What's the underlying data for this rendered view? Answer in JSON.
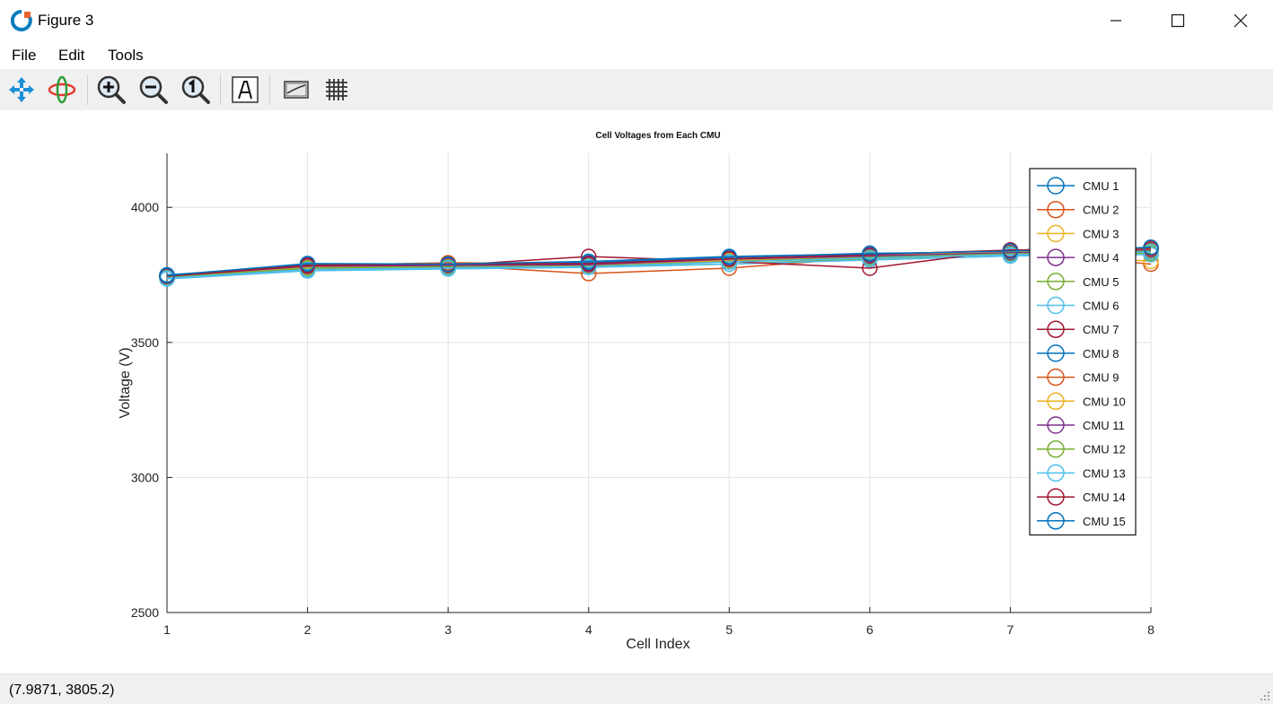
{
  "window": {
    "title": "Figure 3"
  },
  "menu": {
    "items": [
      "File",
      "Edit",
      "Tools"
    ]
  },
  "toolbar": {
    "tools": [
      "pan-icon",
      "rotate-icon",
      "zoom-in-icon",
      "zoom-out-icon",
      "zoom-reset-icon",
      "text-icon",
      "axes-icon",
      "grid-icon"
    ]
  },
  "status": {
    "coordinates": "(7.9871, 3805.2)"
  },
  "chart_data": {
    "type": "line",
    "title": "Cell Voltages from Each CMU",
    "xlabel": "Cell Index",
    "ylabel": "Voltage (V)",
    "xlim": [
      1,
      8
    ],
    "ylim": [
      2500,
      4200
    ],
    "xticks": [
      1,
      2,
      3,
      4,
      5,
      6,
      7,
      8
    ],
    "yticks": [
      2500,
      3000,
      3500,
      4000
    ],
    "grid": true,
    "legend_position": "top-right",
    "marker": "circle",
    "x": [
      1,
      2,
      3,
      4,
      5,
      6,
      7,
      8
    ],
    "series": [
      {
        "name": "CMU 1",
        "color": "#0072BD",
        "values": [
          3750,
          3785,
          3782,
          3780,
          3805,
          3815,
          3825,
          3840
        ]
      },
      {
        "name": "CMU 2",
        "color": "#D95319",
        "values": [
          3745,
          3775,
          3785,
          3755,
          3775,
          3815,
          3835,
          3790
        ]
      },
      {
        "name": "CMU 3",
        "color": "#EDB120",
        "values": [
          3742,
          3772,
          3778,
          3782,
          3800,
          3825,
          3840,
          3800
        ]
      },
      {
        "name": "CMU 4",
        "color": "#7E2F8E",
        "values": [
          3745,
          3780,
          3780,
          3785,
          3805,
          3815,
          3830,
          3845
        ]
      },
      {
        "name": "CMU 5",
        "color": "#77AC30",
        "values": [
          3740,
          3770,
          3775,
          3780,
          3790,
          3810,
          3825,
          3830
        ]
      },
      {
        "name": "CMU 6",
        "color": "#4DBEEE",
        "values": [
          3735,
          3765,
          3772,
          3778,
          3790,
          3805,
          3820,
          3825
        ]
      },
      {
        "name": "CMU 7",
        "color": "#A2142F",
        "values": [
          3745,
          3782,
          3785,
          3818,
          3800,
          3775,
          3842,
          3848
        ]
      },
      {
        "name": "CMU 8",
        "color": "#0072BD",
        "values": [
          3748,
          3790,
          3788,
          3795,
          3815,
          3830,
          3835,
          3845
        ]
      },
      {
        "name": "CMU 9",
        "color": "#D95319",
        "values": [
          3745,
          3785,
          3795,
          3790,
          3805,
          3820,
          3838,
          3845
        ]
      },
      {
        "name": "CMU 10",
        "color": "#EDB120",
        "values": [
          3742,
          3778,
          3782,
          3785,
          3805,
          3820,
          3835,
          3840
        ]
      },
      {
        "name": "CMU 11",
        "color": "#7E2F8E",
        "values": [
          3745,
          3782,
          3785,
          3788,
          3808,
          3820,
          3832,
          3842
        ]
      },
      {
        "name": "CMU 12",
        "color": "#77AC30",
        "values": [
          3740,
          3775,
          3780,
          3782,
          3800,
          3815,
          3828,
          3838
        ]
      },
      {
        "name": "CMU 13",
        "color": "#4DBEEE",
        "values": [
          3738,
          3770,
          3776,
          3780,
          3798,
          3812,
          3825,
          3835
        ]
      },
      {
        "name": "CMU 14",
        "color": "#A2142F",
        "values": [
          3745,
          3785,
          3790,
          3792,
          3810,
          3825,
          3842,
          3850
        ]
      },
      {
        "name": "CMU 15",
        "color": "#0072BD",
        "values": [
          3748,
          3792,
          3790,
          3800,
          3818,
          3828,
          3838,
          3852
        ]
      }
    ]
  }
}
